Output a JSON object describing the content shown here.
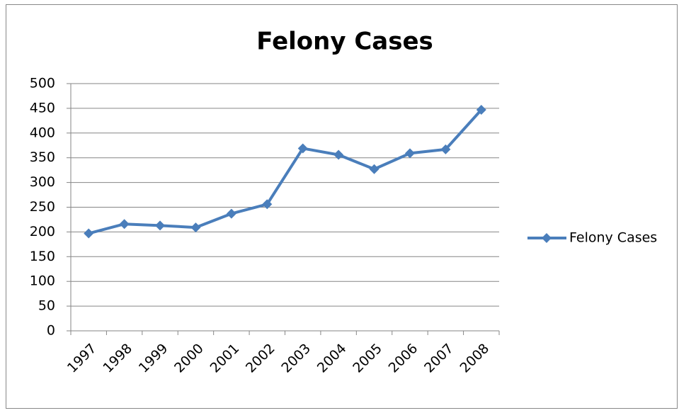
{
  "chart_data": {
    "type": "line",
    "title": "Felony Cases",
    "categories": [
      "1997",
      "1998",
      "1999",
      "2000",
      "2001",
      "2002",
      "2003",
      "2004",
      "2005",
      "2006",
      "2007",
      "2008"
    ],
    "series": [
      {
        "name": "Felony Cases",
        "color": "#4a7ebb",
        "values": [
          197,
          216,
          213,
          209,
          237,
          256,
          369,
          356,
          327,
          359,
          367,
          447
        ]
      }
    ],
    "ylim": [
      0,
      500
    ],
    "yticks": [
      0,
      50,
      100,
      150,
      200,
      250,
      300,
      350,
      400,
      450,
      500
    ],
    "grid": true,
    "legend": "right"
  }
}
